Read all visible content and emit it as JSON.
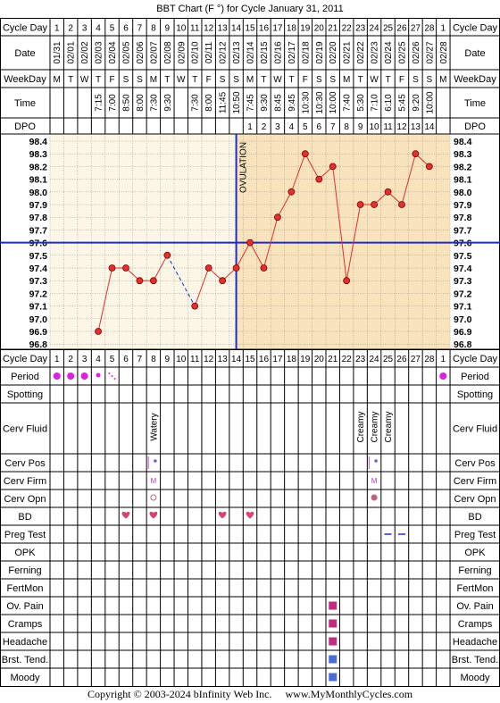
{
  "title": "BBT Chart (F °) for Cycle January 31, 2011",
  "footer": "Copyright © 2003-2024 bInfinity Web Inc.     www.MyMonthlyCycles.com",
  "colors": {
    "grid": "#000000",
    "pre_ovulation_bg": "#fbf6e6",
    "post_ovulation_bg": "#f8e3bd",
    "line": "#e03030",
    "point": "#e03030",
    "ovulation_line": "#1a2ccc",
    "coverline": "#1a2ccc",
    "period": "#e020e0",
    "heart": "#d8407a",
    "square_pink": "#c02c80",
    "square_blue": "#4a6cd8",
    "preg_test": "#2030d0"
  },
  "row_labels": {
    "cycle_day": "Cycle Day",
    "date": "Date",
    "weekday": "WeekDay",
    "time": "Time",
    "dpo": "DPO",
    "period": "Period",
    "spotting": "Spotting",
    "cerv_fluid": "Cerv Fluid",
    "cerv_pos": "Cerv Pos",
    "cerv_firm": "Cerv Firm",
    "cerv_opn": "Cerv Opn",
    "bd": "BD",
    "preg_test": "Preg Test",
    "opk": "OPK",
    "ferning": "Ferning",
    "fertmon": "FertMon",
    "ov_pain": "Ov. Pain",
    "cramps": "Cramps",
    "headache": "Headache",
    "brst_tend": "Brst. Tend.",
    "moody": "Moody"
  },
  "cycle_days": [
    "1",
    "2",
    "3",
    "4",
    "5",
    "6",
    "7",
    "8",
    "9",
    "10",
    "11",
    "12",
    "13",
    "14",
    "15",
    "16",
    "17",
    "18",
    "19",
    "20",
    "21",
    "22",
    "23",
    "24",
    "25",
    "26",
    "27",
    "28",
    "1"
  ],
  "dates": [
    "01/31",
    "02/01",
    "02/02",
    "02/03",
    "02/04",
    "02/05",
    "02/06",
    "02/07",
    "02/08",
    "02/09",
    "02/10",
    "02/11",
    "02/12",
    "02/13",
    "02/14",
    "02/15",
    "02/16",
    "02/17",
    "02/18",
    "02/19",
    "02/20",
    "02/21",
    "02/22",
    "02/23",
    "02/24",
    "02/25",
    "02/26",
    "02/27",
    "02/28"
  ],
  "weekdays": [
    "M",
    "T",
    "W",
    "T",
    "F",
    "S",
    "S",
    "M",
    "T",
    "W",
    "T",
    "F",
    "S",
    "S",
    "M",
    "T",
    "W",
    "T",
    "F",
    "S",
    "S",
    "M",
    "T",
    "W",
    "T",
    "F",
    "S",
    "S",
    "M"
  ],
  "times": [
    "",
    "",
    "",
    "7:15",
    "7:00",
    "8:50",
    "8:00",
    "7:30",
    "9:30",
    "",
    "7:30",
    "8:00",
    "11:45",
    "10:50",
    "7:45",
    "9:30",
    "8:45",
    "9:45",
    "10:30",
    "10:30",
    "10:00",
    "7:40",
    "5:30",
    "7:10",
    "6:10",
    "5:45",
    "9:20",
    "10:00",
    ""
  ],
  "dpo": [
    "",
    "",
    "",
    "",
    "",
    "",
    "",
    "",
    "",
    "",
    "",
    "",
    "",
    "",
    "1",
    "2",
    "3",
    "4",
    "5",
    "6",
    "7",
    "8",
    "9",
    "10",
    "11",
    "12",
    "13",
    "14",
    ""
  ],
  "cerv_fluid": [
    "",
    "",
    "",
    "",
    "",
    "",
    "",
    "Watery",
    "",
    "",
    "",
    "",
    "",
    "",
    "",
    "",
    "",
    "",
    "",
    "",
    "",
    "",
    "Creamy",
    "Creamy",
    "Creamy",
    "",
    "",
    "",
    ""
  ],
  "cerv_pos": [
    "",
    "",
    "",
    "",
    "",
    "",
    "",
    "•",
    "",
    "",
    "",
    "",
    "",
    "",
    "",
    "",
    "",
    "",
    "",
    "",
    "",
    "",
    "",
    "•",
    "",
    "",
    "",
    "",
    ""
  ],
  "cerv_firm": [
    "",
    "",
    "",
    "",
    "",
    "",
    "",
    "M",
    "",
    "",
    "",
    "",
    "",
    "",
    "",
    "",
    "",
    "",
    "",
    "",
    "",
    "",
    "",
    "M",
    "",
    "",
    "",
    "",
    ""
  ],
  "cerv_opn": [
    "",
    "",
    "",
    "",
    "",
    "",
    "",
    "○",
    "",
    "",
    "",
    "",
    "",
    "",
    "",
    "",
    "",
    "",
    "",
    "",
    "",
    "",
    "",
    "●",
    "",
    "",
    "",
    "",
    ""
  ],
  "period": [
    3,
    3,
    3,
    2,
    1,
    0,
    0,
    0,
    0,
    0,
    0,
    0,
    0,
    0,
    0,
    0,
    0,
    0,
    0,
    0,
    0,
    0,
    0,
    0,
    0,
    0,
    0,
    0,
    3
  ],
  "bd": [
    6,
    8,
    13,
    15
  ],
  "preg_test": [
    25,
    26
  ],
  "ov_pain": [
    21
  ],
  "cramps": [
    21
  ],
  "headache": [
    21
  ],
  "brst_tend": [
    21
  ],
  "moody": [
    21
  ],
  "ovulation_label": "OVULATION",
  "chart_data": {
    "type": "line",
    "ylabel": "",
    "ylim": [
      96.8,
      98.4
    ],
    "y_ticks": [
      "98.4",
      "98.3",
      "98.2",
      "98.1",
      "98.0",
      "97.9",
      "97.8",
      "97.7",
      "97.6",
      "97.5",
      "97.4",
      "97.3",
      "97.2",
      "97.1",
      "97.0",
      "96.9",
      "96.8"
    ],
    "x": [
      1,
      2,
      3,
      4,
      5,
      6,
      7,
      8,
      9,
      10,
      11,
      12,
      13,
      14,
      15,
      16,
      17,
      18,
      19,
      20,
      21,
      22,
      23,
      24,
      25,
      26,
      27,
      28,
      29
    ],
    "temps": [
      null,
      null,
      null,
      96.9,
      97.4,
      97.4,
      97.3,
      97.3,
      97.5,
      null,
      97.1,
      97.4,
      97.3,
      97.4,
      97.6,
      97.4,
      97.8,
      98.0,
      98.3,
      98.1,
      98.2,
      97.3,
      97.9,
      97.9,
      98.0,
      97.9,
      98.3,
      98.2,
      null
    ],
    "ovulation_day": 14,
    "coverline": 97.6,
    "grid": true
  }
}
